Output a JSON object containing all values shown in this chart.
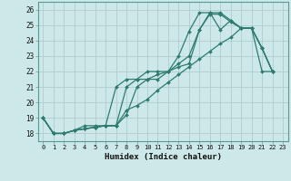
{
  "xlabel": "Humidex (Indice chaleur)",
  "background_color": "#cde8e8",
  "grid_color": "#b0cccc",
  "line_color": "#2e7b70",
  "xlim": [
    -0.5,
    23.5
  ],
  "ylim": [
    17.5,
    26.5
  ],
  "xticks": [
    0,
    1,
    2,
    3,
    4,
    5,
    6,
    7,
    8,
    9,
    10,
    11,
    12,
    13,
    14,
    15,
    16,
    17,
    18,
    19,
    20,
    21,
    22,
    23
  ],
  "yticks": [
    18,
    19,
    20,
    21,
    22,
    23,
    24,
    25,
    26
  ],
  "series": [
    [
      19.0,
      18.0,
      18.0,
      18.2,
      18.3,
      18.4,
      18.5,
      18.5,
      19.2,
      21.0,
      21.5,
      21.8,
      22.0,
      23.0,
      24.6,
      25.8,
      25.8,
      24.7,
      25.3,
      24.8,
      24.8,
      23.5,
      22.0
    ],
    [
      19.0,
      18.0,
      18.0,
      18.2,
      18.3,
      18.4,
      18.5,
      18.5,
      21.0,
      21.5,
      21.5,
      21.5,
      22.0,
      22.3,
      22.5,
      24.7,
      25.7,
      25.7,
      25.2,
      24.8,
      24.8,
      23.5,
      22.0
    ],
    [
      19.0,
      18.0,
      18.0,
      18.2,
      18.3,
      18.4,
      18.5,
      21.0,
      21.5,
      21.5,
      22.0,
      22.0,
      22.0,
      22.5,
      23.0,
      24.7,
      25.8,
      25.8,
      25.3,
      24.8,
      24.8,
      23.5,
      22.0
    ],
    [
      19.0,
      18.0,
      18.0,
      18.2,
      18.5,
      18.5,
      18.5,
      18.5,
      19.5,
      19.8,
      20.2,
      20.8,
      21.3,
      21.8,
      22.3,
      22.8,
      23.3,
      23.8,
      24.2,
      24.8,
      24.8,
      22.0,
      22.0
    ]
  ]
}
